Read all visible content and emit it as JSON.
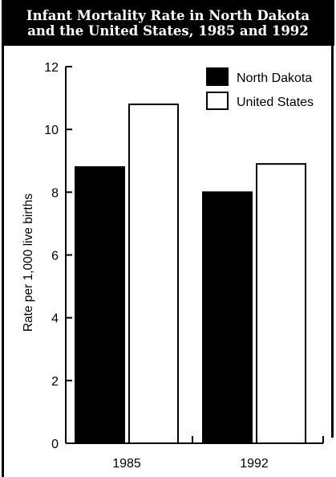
{
  "chart_data": {
    "type": "bar",
    "title_lines": [
      "Infant Mortality Rate in North Dakota",
      "and the United States, 1985 and 1992"
    ],
    "categories": [
      "1985",
      "1992"
    ],
    "series": [
      {
        "name": "North Dakota",
        "values": [
          8.8,
          8.0
        ],
        "color": "#000000"
      },
      {
        "name": "United States",
        "values": [
          10.8,
          8.9
        ],
        "color": "#ffffff"
      }
    ],
    "ylabel": "Rate per 1,000 live births",
    "ylim": [
      0,
      12
    ],
    "yticks": [
      0,
      2,
      4,
      6,
      8,
      10,
      12
    ],
    "grid": false,
    "legend_position": "top-right"
  }
}
